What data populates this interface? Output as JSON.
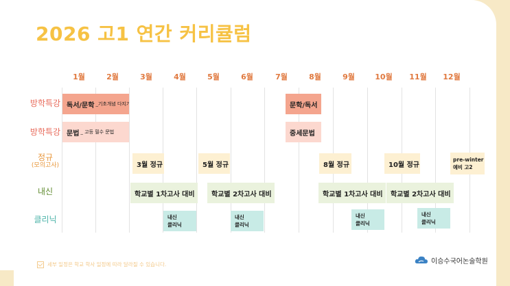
{
  "title": "2026 고1 연간 커리큘럼",
  "months": [
    "1월",
    "2월",
    "3월",
    "4월",
    "5월",
    "6월",
    "7월",
    "8월",
    "9월",
    "10월",
    "11월",
    "12월"
  ],
  "rows": {
    "special1": "방학특강",
    "special2": "방학특강",
    "regular": "정규",
    "regular_sub": "(모의고사)",
    "naesin": "내신",
    "clinic": "클리닉"
  },
  "bars": {
    "reading_main": "독서/문학",
    "reading_sub": "_기초개념 다지기",
    "grammar_main": "문법",
    "grammar_sub": "_ 고등 필수 문법",
    "lit_reading": "문학/독서",
    "middle_grammar": "중세문법",
    "regular_mar": "3월 정규",
    "regular_may": "5월 정규",
    "regular_aug": "8월 정규",
    "regular_oct": "10월 정규",
    "prewinter_1": "pre-winter",
    "prewinter_2": "예비 고2",
    "exam1_a": "학교별 1차고사 대비",
    "exam2_a": "학교별 2차고사 대비",
    "exam1_b": "학교별 1차고사 대비",
    "exam2_b": "학교별 2차고사 대비",
    "clinic_l1": "내신",
    "clinic_l2": "클리닉"
  },
  "footnote": "세부 일정은 학교 학사 일정에 따라 달라질 수 있습니다.",
  "logo_text": "이승수국어논술학원",
  "colors": {
    "title": "#f6c244",
    "month": "#e0793f",
    "special": "#e86a5a",
    "regular": "#e8963a",
    "naesin": "#5f8a2e",
    "clinic": "#4bb3a8"
  }
}
